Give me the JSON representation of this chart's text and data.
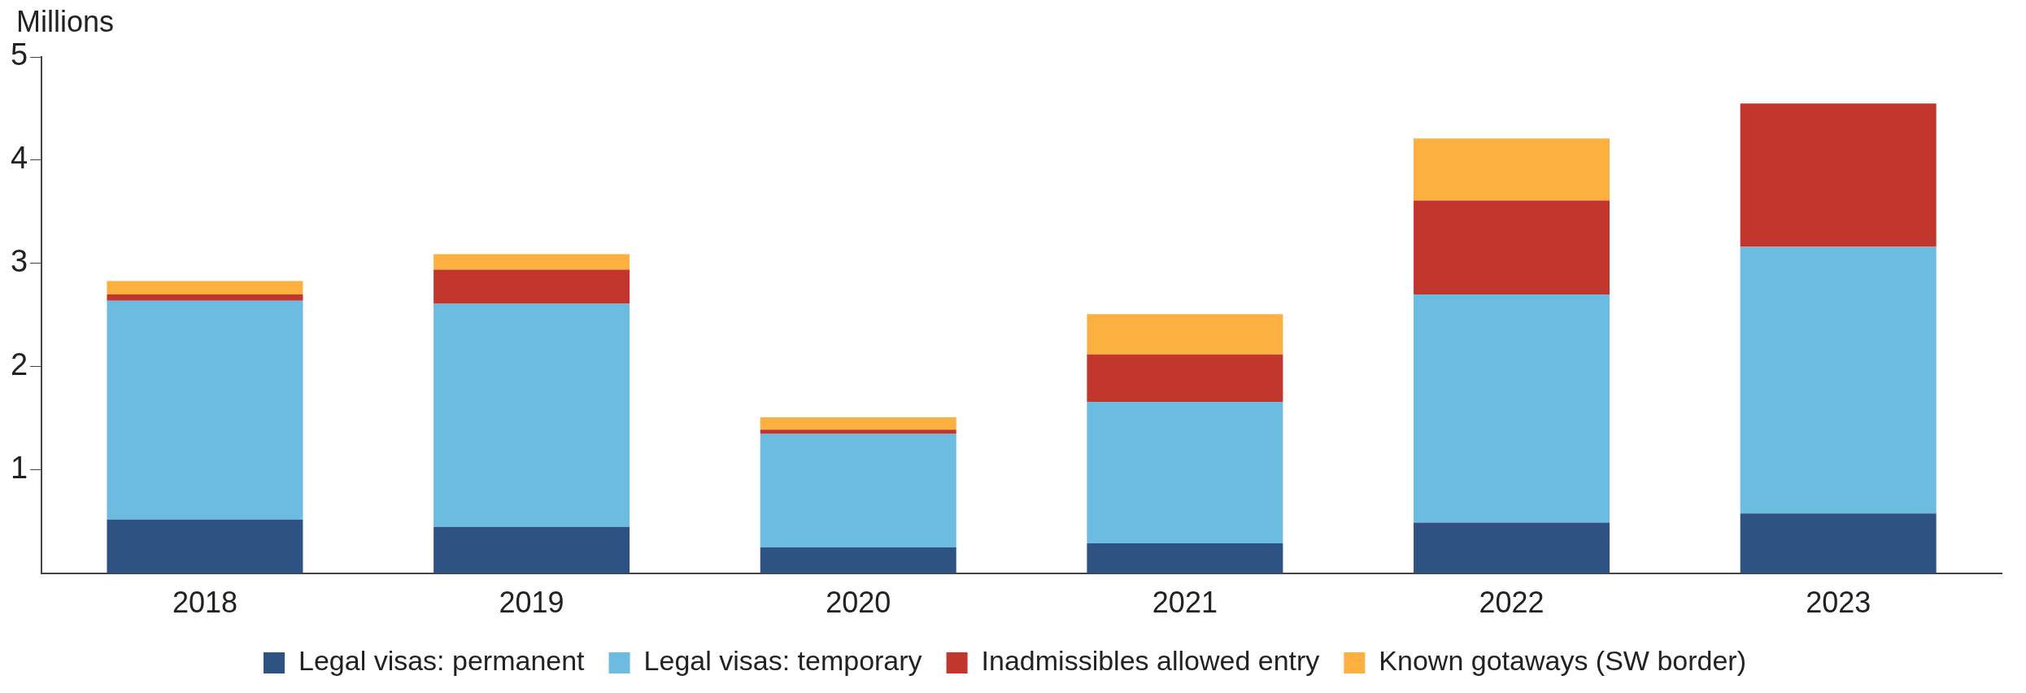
{
  "chart_data": {
    "type": "bar",
    "ylabel": "Millions",
    "categories": [
      "2018",
      "2019",
      "2020",
      "2021",
      "2022",
      "2023"
    ],
    "stacked": true,
    "ylim": [
      0,
      5
    ],
    "yticks": [
      1,
      2,
      3,
      4,
      5
    ],
    "grid": false,
    "legend": "bottom",
    "series": [
      {
        "name": "Legal visas: permanent",
        "color": "#2e5382",
        "values": [
          0.52,
          0.45,
          0.25,
          0.29,
          0.49,
          0.58
        ]
      },
      {
        "name": "Legal visas: temporary",
        "color": "#6bbce0",
        "values": [
          2.12,
          2.16,
          1.1,
          1.37,
          2.21,
          2.58
        ]
      },
      {
        "name": "Inadmissibles allowed entry",
        "color": "#c1372e",
        "values": [
          0.06,
          0.33,
          0.04,
          0.46,
          0.91,
          1.39
        ]
      },
      {
        "name": "Known gotaways (SW border)",
        "color": "#fbb040",
        "values": [
          0.13,
          0.15,
          0.12,
          0.39,
          0.6,
          null
        ]
      }
    ]
  }
}
